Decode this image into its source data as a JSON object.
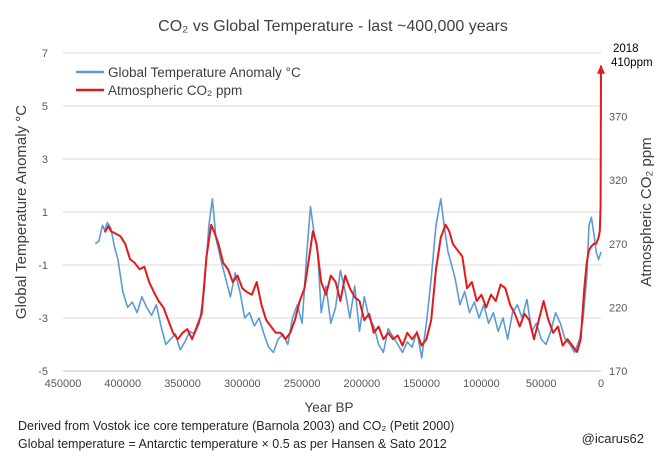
{
  "chart_data": {
    "type": "line",
    "title": "CO₂ vs Global Temperature - last ~400,000 years",
    "xlabel": "Year BP",
    "ylabel_left": "Global Temperature Anomaly °C",
    "ylabel_right": "Atmospheric CO₂ ppm",
    "xlim": [
      450000,
      0
    ],
    "x_ticks": [
      450000,
      400000,
      350000,
      300000,
      250000,
      200000,
      150000,
      100000,
      50000,
      0
    ],
    "x_tick_labels": [
      "450000",
      "400000",
      "350000",
      "300000",
      "250000",
      "200000",
      "150000",
      "100000",
      "50000",
      "0"
    ],
    "ylim_left": [
      -5,
      7
    ],
    "y_ticks_left": [
      -5,
      -3,
      -1,
      1,
      3,
      5,
      7
    ],
    "y_tick_labels_left": [
      "-5",
      "-3",
      "-1",
      "1",
      "3",
      "5",
      "7"
    ],
    "ylim_right": [
      170,
      420
    ],
    "y_ticks_right": [
      170,
      220,
      270,
      320,
      370
    ],
    "y_tick_labels_right": [
      "170",
      "220",
      "270",
      "320",
      "370"
    ],
    "grid": "horizontal",
    "legend_position": "top-left",
    "annotation": {
      "line1": "2018",
      "line2": "410ppm",
      "x": 0,
      "y": 410
    },
    "series": [
      {
        "name": "Global Temperature Anomaly °C",
        "axis": "left",
        "color": "#5b9bd5",
        "x": [
          423000,
          420000,
          417000,
          415000,
          413000,
          410000,
          407000,
          404000,
          400000,
          396000,
          392000,
          388000,
          384000,
          380000,
          376000,
          372000,
          368000,
          364000,
          360000,
          356000,
          352000,
          348000,
          344000,
          340000,
          336000,
          332000,
          328000,
          325000,
          322000,
          318000,
          314000,
          310000,
          306000,
          302000,
          298000,
          294000,
          290000,
          286000,
          282000,
          278000,
          274000,
          270000,
          266000,
          262000,
          258000,
          254000,
          250000,
          246000,
          243000,
          240000,
          237000,
          234000,
          230000,
          226000,
          222000,
          218000,
          214000,
          210000,
          206000,
          202000,
          198000,
          194000,
          190000,
          186000,
          182000,
          178000,
          174000,
          170000,
          166000,
          162000,
          158000,
          154000,
          150000,
          146000,
          142000,
          138000,
          134000,
          131000,
          128000,
          125000,
          122000,
          118000,
          114000,
          110000,
          106000,
          102000,
          98000,
          94000,
          90000,
          86000,
          82000,
          78000,
          74000,
          70000,
          66000,
          62000,
          58000,
          54000,
          50000,
          46000,
          42000,
          38000,
          34000,
          30000,
          26000,
          22000,
          18000,
          15000,
          12000,
          10000,
          8000,
          6000,
          4000,
          2000,
          0
        ],
        "y": [
          -0.2,
          -0.1,
          0.5,
          0.3,
          0.6,
          0.4,
          -0.3,
          -0.8,
          -2.0,
          -2.6,
          -2.4,
          -2.8,
          -2.2,
          -2.6,
          -2.9,
          -2.5,
          -3.3,
          -4.0,
          -3.8,
          -3.6,
          -4.2,
          -3.9,
          -3.5,
          -3.6,
          -3.2,
          -2.0,
          0.5,
          1.5,
          0.0,
          -0.8,
          -1.5,
          -2.2,
          -1.3,
          -2.0,
          -3.0,
          -2.8,
          -3.3,
          -3.0,
          -3.6,
          -4.1,
          -4.3,
          -3.8,
          -3.6,
          -4.0,
          -3.0,
          -2.5,
          -3.2,
          -0.5,
          1.2,
          0.2,
          -0.5,
          -2.8,
          -1.8,
          -3.2,
          -2.6,
          -1.2,
          -2.0,
          -3.0,
          -1.8,
          -3.5,
          -2.2,
          -3.0,
          -3.3,
          -4.0,
          -4.3,
          -3.4,
          -3.7,
          -4.0,
          -4.3,
          -3.9,
          -4.1,
          -3.5,
          -4.5,
          -3.2,
          -1.5,
          0.5,
          1.5,
          0.4,
          -0.5,
          -1.0,
          -1.5,
          -2.5,
          -2.0,
          -2.8,
          -2.4,
          -3.0,
          -2.5,
          -3.2,
          -2.8,
          -3.5,
          -3.0,
          -3.8,
          -2.8,
          -2.5,
          -3.0,
          -2.3,
          -3.5,
          -3.2,
          -3.8,
          -4.0,
          -3.5,
          -2.8,
          -3.2,
          -3.8,
          -4.0,
          -4.3,
          -3.8,
          -3.0,
          -1.5,
          0.5,
          0.8,
          0.2,
          -0.5,
          -0.8,
          -0.5
        ]
      },
      {
        "name": "Atmospheric CO₂ ppm",
        "axis": "right",
        "color": "#e31a1c",
        "x": [
          415000,
          412000,
          410000,
          406000,
          402000,
          398000,
          394000,
          390000,
          386000,
          382000,
          378000,
          374000,
          370000,
          366000,
          362000,
          358000,
          354000,
          350000,
          346000,
          342000,
          338000,
          334000,
          330000,
          326000,
          323000,
          320000,
          316000,
          312000,
          308000,
          304000,
          300000,
          296000,
          292000,
          288000,
          284000,
          280000,
          276000,
          272000,
          268000,
          264000,
          260000,
          256000,
          252000,
          248000,
          244000,
          241000,
          238000,
          234000,
          230000,
          226000,
          222000,
          218000,
          214000,
          210000,
          206000,
          202000,
          198000,
          194000,
          190000,
          186000,
          182000,
          178000,
          174000,
          170000,
          166000,
          162000,
          158000,
          154000,
          150000,
          146000,
          142000,
          138000,
          134000,
          130000,
          127000,
          124000,
          120000,
          116000,
          112000,
          108000,
          104000,
          100000,
          96000,
          92000,
          88000,
          84000,
          80000,
          76000,
          72000,
          68000,
          64000,
          60000,
          56000,
          52000,
          48000,
          44000,
          40000,
          36000,
          32000,
          28000,
          24000,
          20000,
          17000,
          14000,
          12000,
          10000,
          8000,
          6000,
          4000,
          2000,
          1000,
          300,
          0
        ],
        "y": [
          279,
          284,
          280,
          278,
          276,
          270,
          258,
          255,
          250,
          252,
          240,
          232,
          225,
          220,
          210,
          200,
          195,
          200,
          203,
          195,
          205,
          215,
          260,
          285,
          278,
          270,
          255,
          250,
          240,
          245,
          235,
          232,
          230,
          240,
          222,
          210,
          205,
          200,
          200,
          195,
          200,
          210,
          225,
          235,
          260,
          280,
          270,
          240,
          230,
          245,
          240,
          225,
          245,
          235,
          228,
          225,
          210,
          215,
          200,
          205,
          195,
          200,
          195,
          198,
          190,
          200,
          195,
          200,
          190,
          195,
          210,
          250,
          275,
          285,
          280,
          270,
          265,
          260,
          235,
          240,
          225,
          230,
          220,
          230,
          225,
          238,
          235,
          222,
          215,
          205,
          215,
          210,
          195,
          210,
          225,
          210,
          200,
          205,
          190,
          195,
          190,
          185,
          195,
          235,
          255,
          265,
          268,
          270,
          270,
          275,
          280,
          300,
          410
        ]
      }
    ]
  },
  "footer": {
    "line1": "Derived from Vostok ice core temperature (Barnola 2003) and CO₂ (Petit 2000)",
    "line2": "Global temperature = Antarctic temperature × 0.5 as per Hansen & Sato 2012",
    "credit": "@icarus62"
  }
}
